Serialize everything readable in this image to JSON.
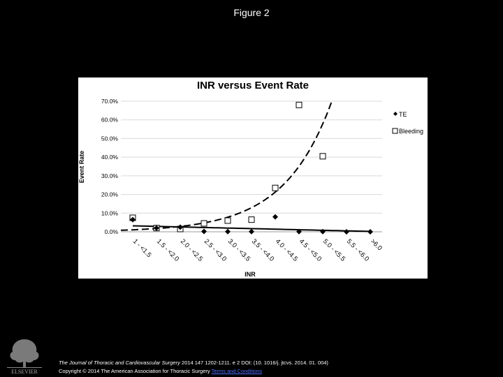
{
  "figure": {
    "title": "Figure 2"
  },
  "chart_data": {
    "type": "scatter",
    "title": "INR versus Event Rate",
    "xlabel": "INR",
    "ylabel": "Event Rate",
    "categories": [
      "1 - <1.5",
      "1.5 - <2.0",
      "2.0 - <2.5",
      "2.5 - <3.0",
      "3.0 - <3.5",
      "3.5 - <4.0",
      "4.0 - <4.5",
      "4.5 - <5.0",
      "5.0 - <5.5",
      "5.5 - <6.0",
      ">6.0"
    ],
    "y_ticks": [
      "70.0%",
      "60.0%",
      "50.0%",
      "40.0%",
      "30.0%",
      "20.0%",
      "10.0%",
      "0.0%"
    ],
    "ylim": [
      0,
      70
    ],
    "grid": true,
    "legend_position": "right",
    "series": [
      {
        "name": "TE",
        "marker": "diamond",
        "color": "#000000",
        "values": [
          6.5,
          2.0,
          2.5,
          0.2,
          0.1,
          0.1,
          8.0,
          0.1,
          0.1,
          0.0,
          0.0
        ],
        "trend": "solid"
      },
      {
        "name": "Bleeding",
        "marker": "square",
        "color": "#000000",
        "values": [
          7.5,
          2.0,
          1.5,
          4.5,
          6.0,
          6.5,
          23.5,
          68.0,
          40.5,
          null,
          null
        ],
        "trend": "dashed"
      }
    ]
  },
  "citation": {
    "journal": "The Journal of Thoracic and Cardiovascular Surgery",
    "ref": " 2014 147 1202-1211. e 2 DOI: (10. 1016/j. jtcvs. 2014. 01. 004)",
    "copyright": "Copyright © 2014 The American Association for Thoracic Surgery ",
    "terms": "Terms and Conditions"
  },
  "logo": {
    "text": "ELSEVIER",
    "icon": "elsevier-tree-icon"
  }
}
